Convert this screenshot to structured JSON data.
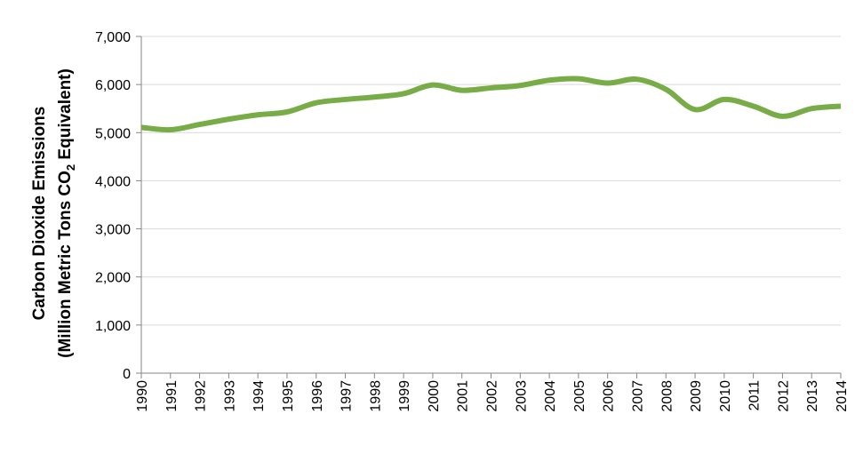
{
  "chart_data": {
    "type": "line",
    "title": "",
    "xlabel": "",
    "ylabel_line1": "Carbon Dioxide Emissions",
    "ylabel_line2_prefix": "(Million Metric Tons CO",
    "ylabel_line2_subscript": "2",
    "ylabel_line2_suffix": " Equivalent)",
    "x": [
      "1990",
      "1991",
      "1992",
      "1993",
      "1994",
      "1995",
      "1996",
      "1997",
      "1998",
      "1999",
      "2000",
      "2001",
      "2002",
      "2003",
      "2004",
      "2005",
      "2006",
      "2007",
      "2008",
      "2009",
      "2010",
      "2011",
      "2012",
      "2013",
      "2014"
    ],
    "series": [
      {
        "values": [
          5110,
          5060,
          5170,
          5280,
          5370,
          5430,
          5620,
          5690,
          5740,
          5810,
          5990,
          5880,
          5930,
          5980,
          6090,
          6120,
          6030,
          6110,
          5900,
          5480,
          5690,
          5550,
          5340,
          5500,
          5550
        ],
        "color": "#77ac47"
      }
    ],
    "yticks": [
      "0",
      "1,000",
      "2,000",
      "3,000",
      "4,000",
      "5,000",
      "6,000",
      "7,000"
    ],
    "ylim": [
      0,
      7000
    ],
    "grid": true,
    "legend": "none"
  }
}
